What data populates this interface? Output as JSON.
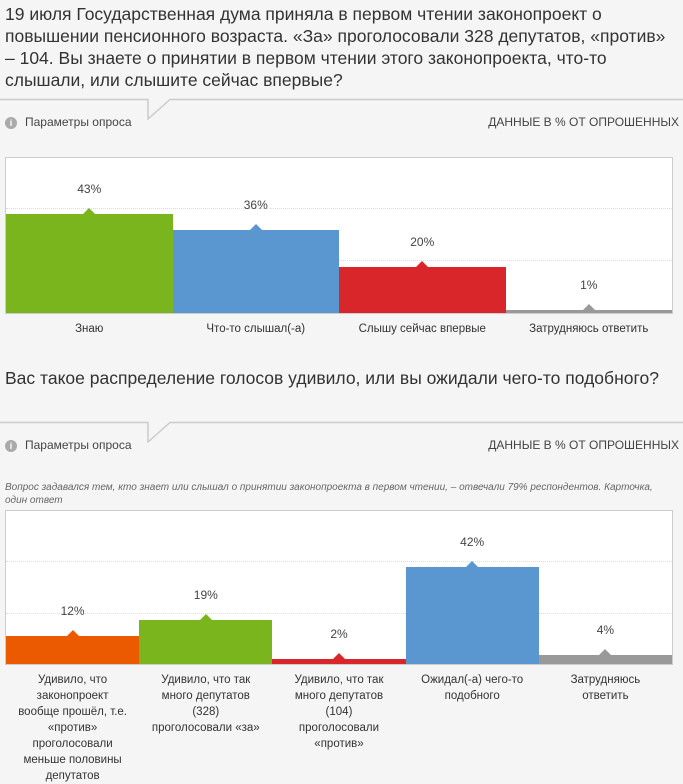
{
  "q1": {
    "question": "19 июля Государственная дума приняла в первом чтении законопроект о повышении пенсионного возраста. «За» проголосовали 328 депутатов, «против» – 104. Вы знаете о принятии в первом чтении этого законопроекта, что-то слышали, или слышите сейчас впервые?",
    "params_label": "Параметры опроса",
    "data_label": "ДАННЫЕ В % ОТ ОПРОШЕННЫХ"
  },
  "q2": {
    "question": "Вас такое распределение голосов удивило, или вы ожидали чего-то подобного?",
    "params_label": "Параметры опроса",
    "data_label": "ДАННЫЕ В % ОТ ОПРОШЕННЫХ",
    "note": "Вопрос задавался тем, кто знает или слышал о принятии законопроекта в первом чтении, – отвечали 79% респондентов. Карточка, один ответ"
  },
  "chart_data": [
    {
      "type": "bar",
      "categories": [
        "Знаю",
        "Что-то слышал(-а)",
        "Слышу сейчас впервые",
        "Затрудняюсь ответить"
      ],
      "values": [
        43,
        36,
        20,
        1
      ],
      "labels": [
        "43%",
        "36%",
        "20%",
        "1%"
      ],
      "colors": [
        "#7ab51d",
        "#5a96d0",
        "#d9262b",
        "#999999"
      ],
      "ylim": [
        0,
        65
      ]
    },
    {
      "type": "bar",
      "categories": [
        "Удивило, что законопроект вообще прошёл, т.е. «против» проголосовали меньше половины депутатов",
        "Удивило, что так много депутатов (328) проголосовали «за»",
        "Удивило, что так много депутатов (104) проголосовали «против»",
        "Ожидал(-а) чего-то подобного",
        "Затрудняюсь ответить"
      ],
      "values": [
        12,
        19,
        2,
        42,
        4
      ],
      "labels": [
        "12%",
        "19%",
        "2%",
        "42%",
        "4%"
      ],
      "colors": [
        "#ec5a00",
        "#7ab51d",
        "#d9262b",
        "#5a96d0",
        "#999999"
      ],
      "ylim": [
        0,
        65
      ]
    }
  ]
}
